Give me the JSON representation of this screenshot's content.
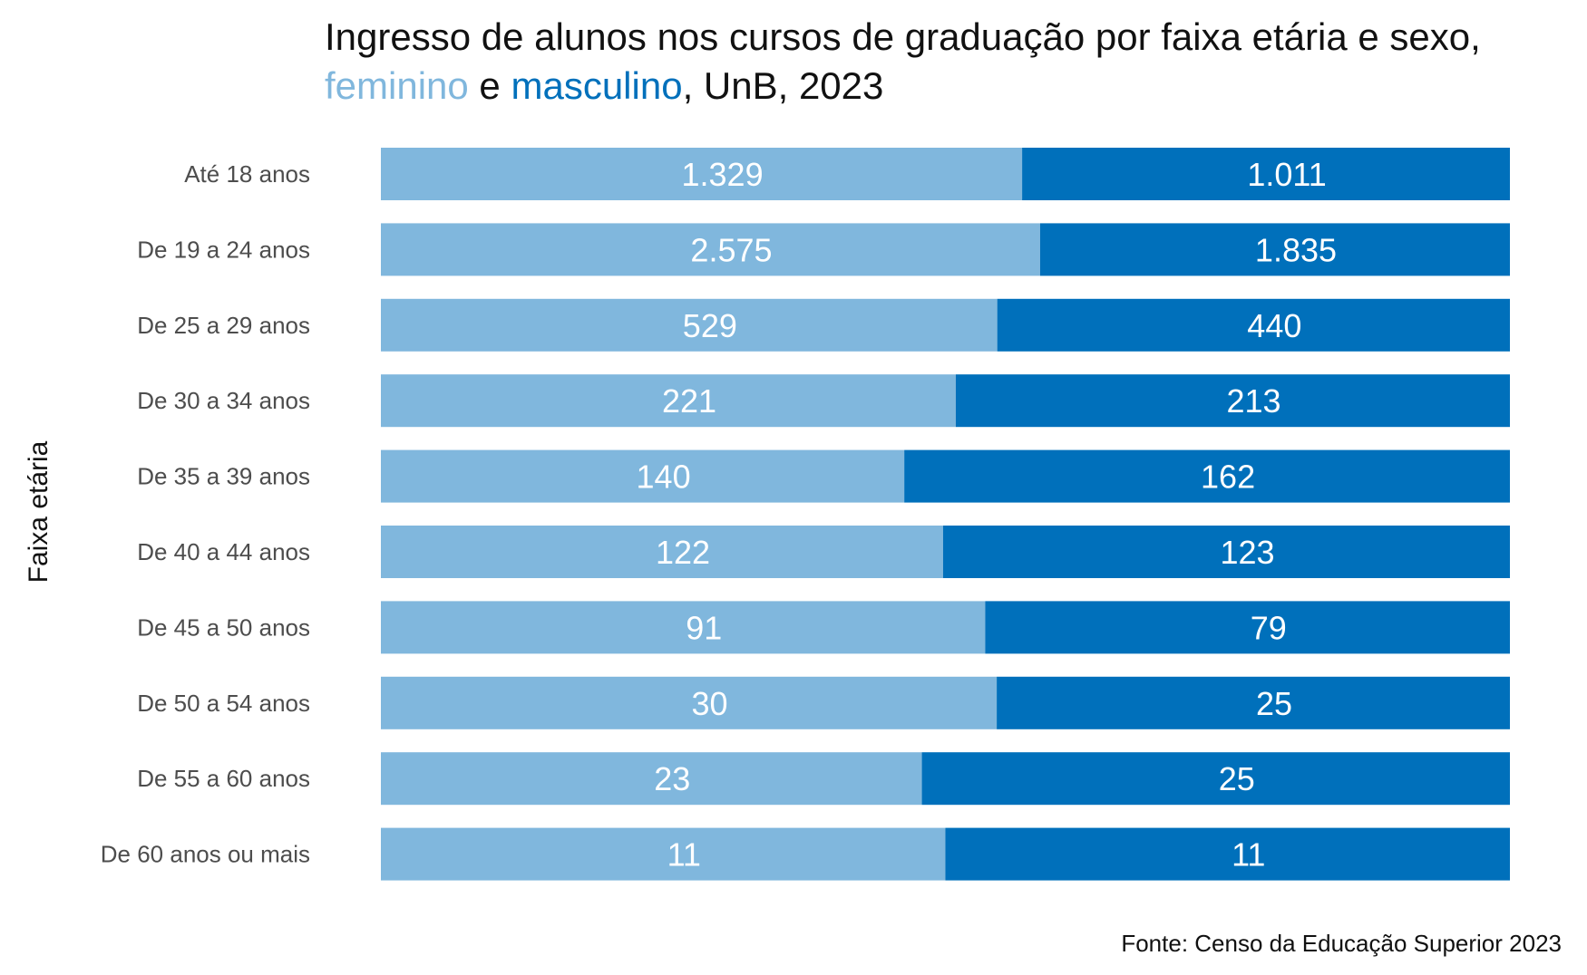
{
  "colors": {
    "feminino": "#80b7dd",
    "masculino": "#0070bb",
    "text": "#111111",
    "category_text": "#4d4d4d",
    "bar_label": "#ffffff"
  },
  "chart_data": {
    "type": "bar",
    "orientation": "horizontal",
    "stacked": "percent",
    "title": {
      "line1": "Ingresso de alunos nos cursos de graduação por faixa etária e sexo,",
      "line2_series1": "feminino",
      "line2_mid": " e ",
      "line2_series2": "masculino",
      "line2_end": ", UnB, 2023"
    },
    "ylabel": "Faixa etária",
    "xlabel": "",
    "source": "Fonte: Censo da Educação Superior 2023",
    "categories": [
      "Até 18 anos",
      "De 19 a 24 anos",
      "De 25 a 29 anos",
      "De 30 a 34 anos",
      "De 35 a 39 anos",
      "De 40 a 44 anos",
      "De 45 a 50 anos",
      "De 50 a 54 anos",
      "De 55 a 60 anos",
      "De 60 anos ou mais"
    ],
    "series": [
      {
        "name": "feminino",
        "values": [
          1329,
          2575,
          529,
          221,
          140,
          122,
          91,
          30,
          23,
          11
        ],
        "labels": [
          "1.329",
          "2.575",
          "529",
          "221",
          "140",
          "122",
          "91",
          "30",
          "23",
          "11"
        ]
      },
      {
        "name": "masculino",
        "values": [
          1011,
          1835,
          440,
          213,
          162,
          123,
          79,
          25,
          25,
          11
        ],
        "labels": [
          "1.011",
          "1.835",
          "440",
          "213",
          "162",
          "123",
          "79",
          "25",
          "25",
          "11"
        ]
      }
    ],
    "grid": false,
    "legend": "none"
  }
}
